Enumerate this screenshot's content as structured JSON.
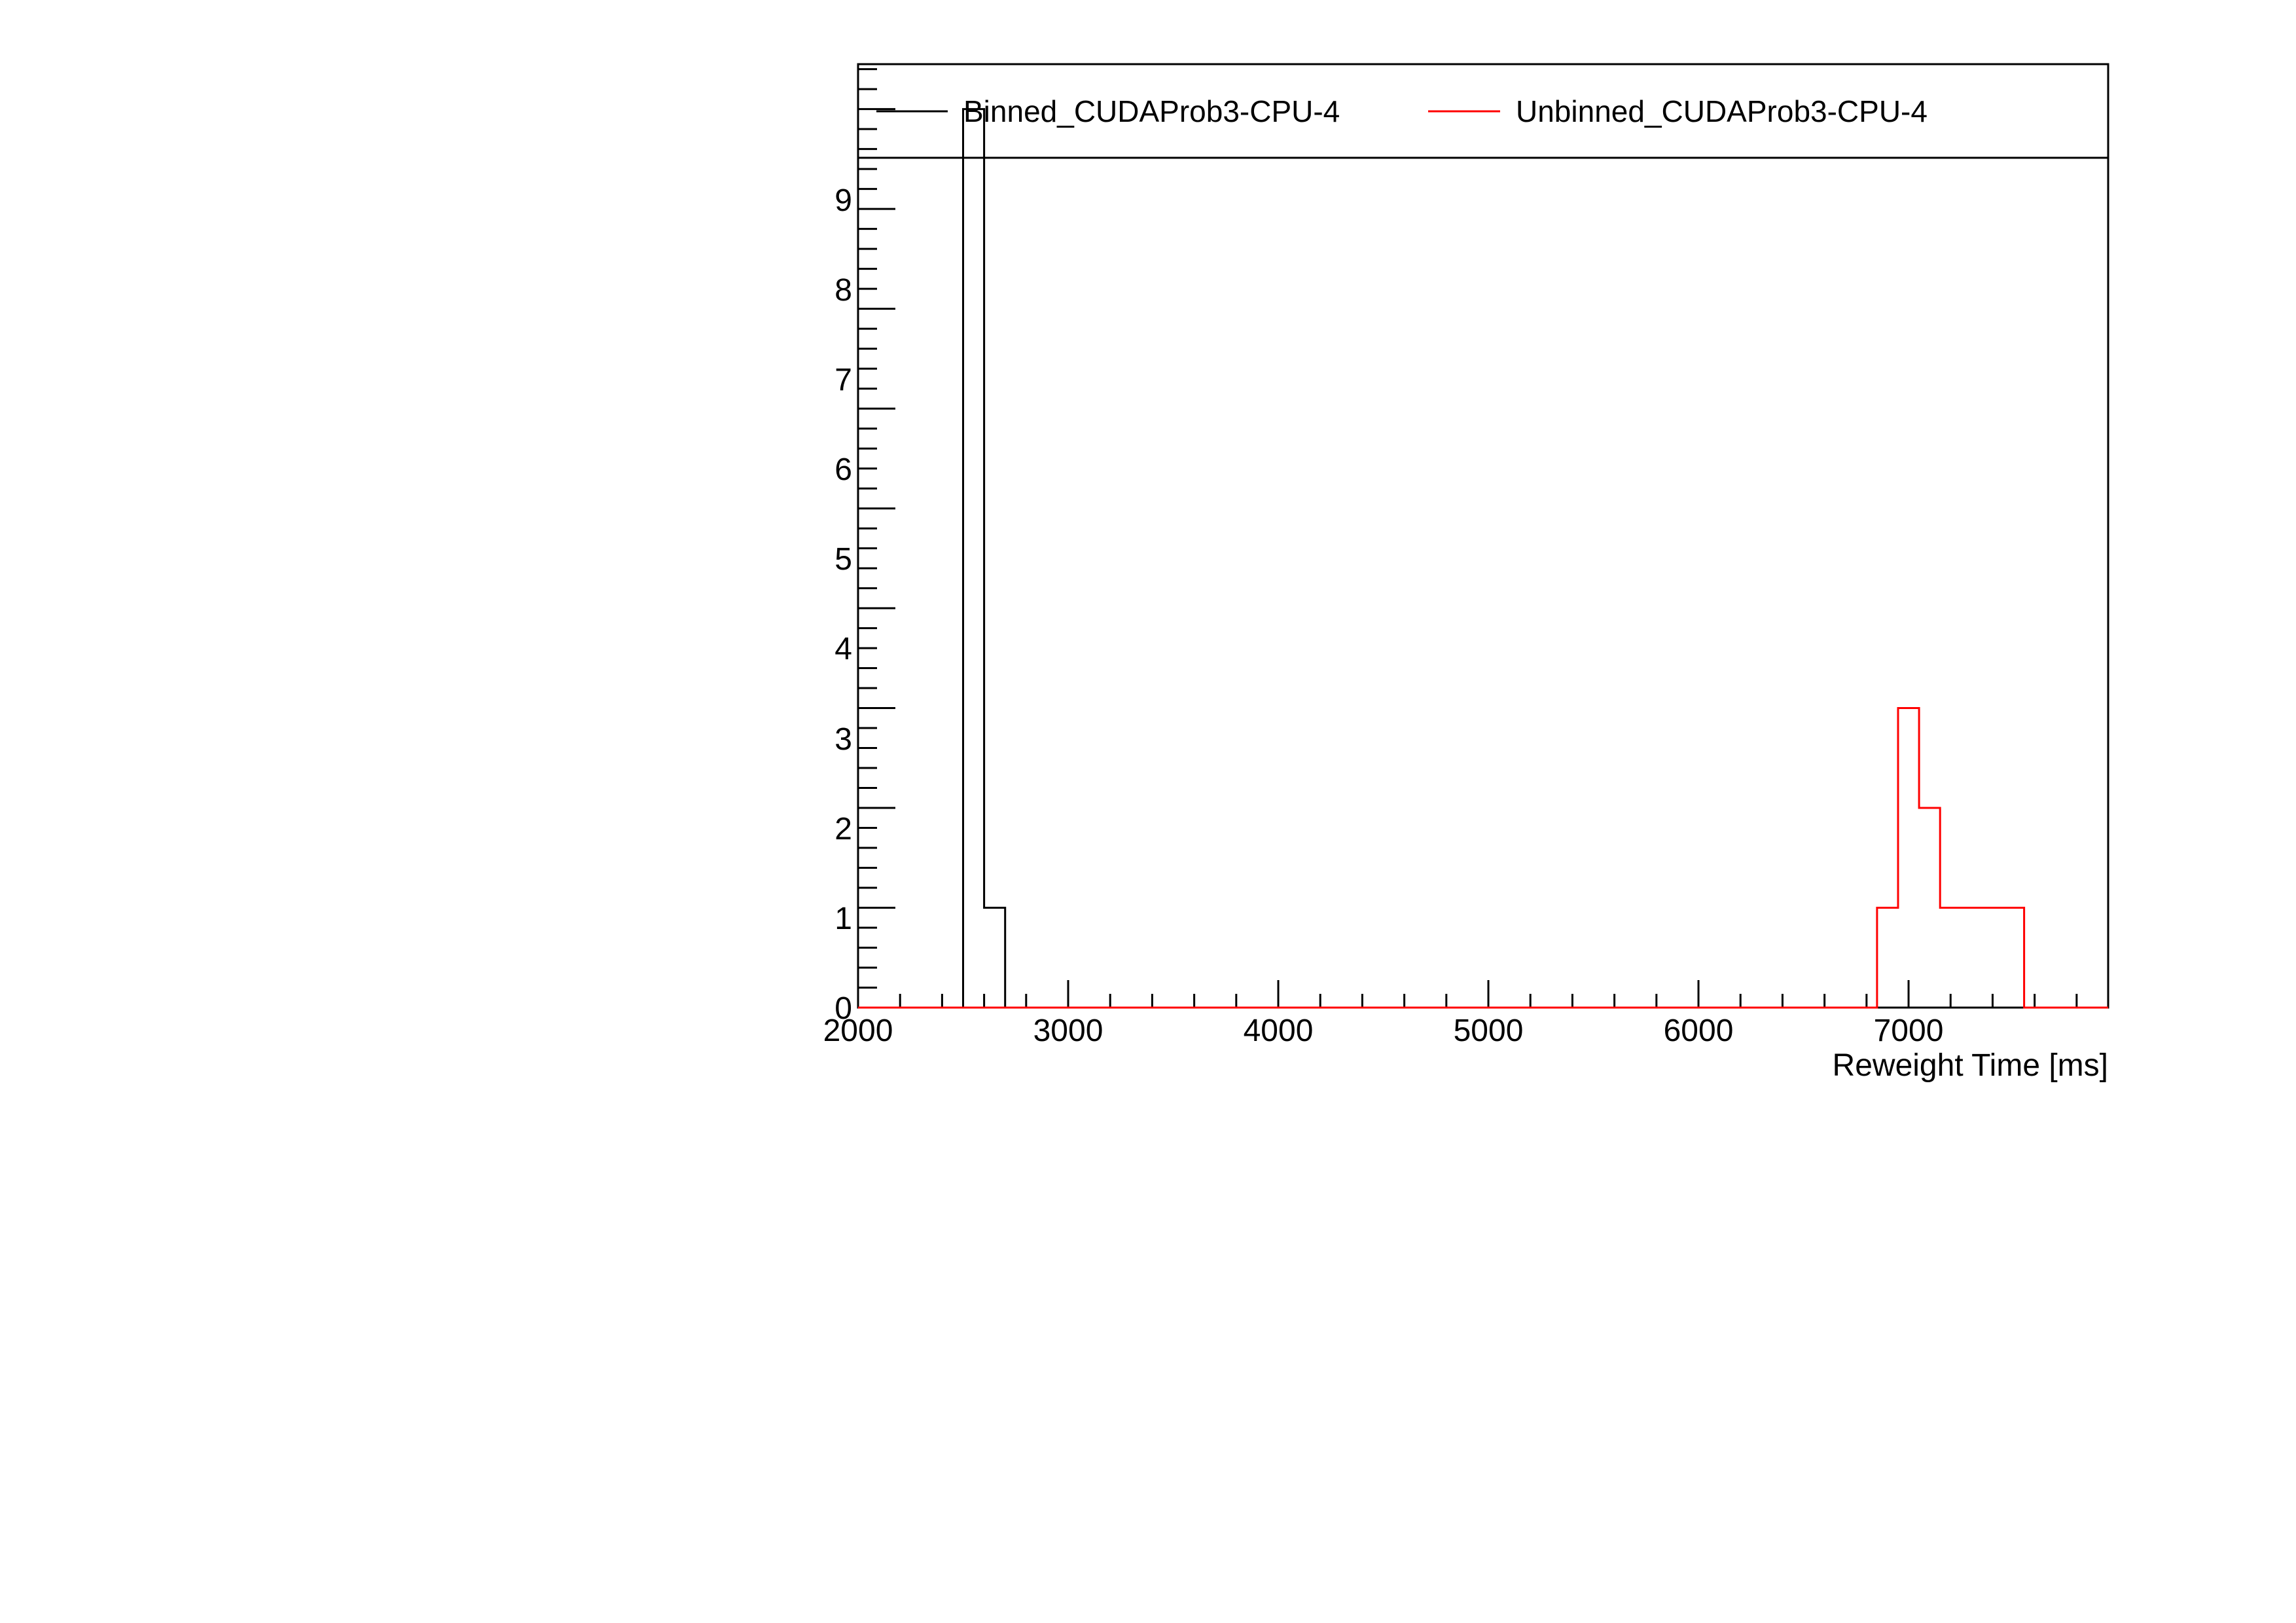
{
  "chart_data": {
    "type": "histogram",
    "title": "",
    "xlabel": "Reweight Time [ms]",
    "ylabel": "",
    "xlim": [
      2000,
      7950
    ],
    "ylim": [
      0,
      9.45
    ],
    "xticks": [
      "2000",
      "3000",
      "4000",
      "5000",
      "6000",
      "7000"
    ],
    "yticks": [
      "0",
      "1",
      "2",
      "3",
      "4",
      "5",
      "6",
      "7",
      "8",
      "9"
    ],
    "bin_width": 100,
    "legend_position": "top",
    "series": [
      {
        "name": "Binned_CUDAProb3-CPU-4",
        "color": "#000000",
        "bins": [
          {
            "x0": 2500,
            "x1": 2600,
            "count": 9
          },
          {
            "x0": 2600,
            "x1": 2700,
            "count": 1
          }
        ]
      },
      {
        "name": "Unbinned_CUDAProb3-CPU-4",
        "color": "#ff0000",
        "bins": [
          {
            "x0": 6850,
            "x1": 6950,
            "count": 1
          },
          {
            "x0": 6950,
            "x1": 7050,
            "count": 3
          },
          {
            "x0": 7050,
            "x1": 7150,
            "count": 2
          },
          {
            "x0": 7150,
            "x1": 7250,
            "count": 1
          },
          {
            "x0": 7250,
            "x1": 7350,
            "count": 1
          },
          {
            "x0": 7350,
            "x1": 7450,
            "count": 1
          },
          {
            "x0": 7450,
            "x1": 7550,
            "count": 1
          }
        ]
      }
    ]
  }
}
